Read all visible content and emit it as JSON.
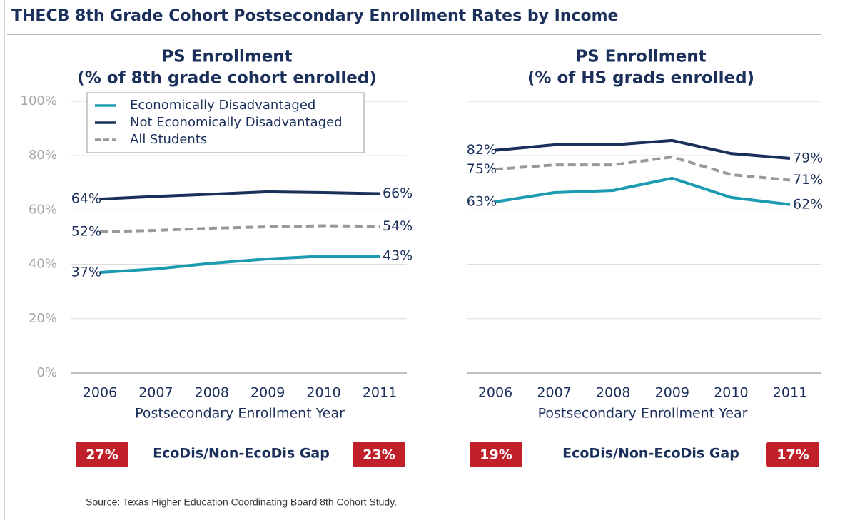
{
  "title": "THECB 8th Grade Cohort Postsecondary Enrollment Rates by Income",
  "source": "Source: Texas Higher Education Coordinating Board 8th Cohort Study.",
  "chart_data": [
    {
      "type": "line",
      "title": "PS Enrollment",
      "subtitle": "(% of 8th grade cohort enrolled)",
      "x_label": "Postsecondary Enrollment Year",
      "categories": [
        "2006",
        "2007",
        "2008",
        "2009",
        "2010",
        "2011"
      ],
      "ylim": [
        0,
        100
      ],
      "yticks": [
        {
          "value": 0,
          "label": "0%"
        },
        {
          "value": 20,
          "label": "20%"
        },
        {
          "value": 40,
          "label": "40%"
        },
        {
          "value": 60,
          "label": "60%"
        },
        {
          "value": 80,
          "label": "80%"
        },
        {
          "value": 100,
          "label": "100%"
        }
      ],
      "ytick_labels": true,
      "grid": true,
      "legend": "top-left",
      "series": [
        {
          "name": "Economically Disadvantaged",
          "color": "#1a9bb0",
          "dash": false,
          "values": [
            37,
            38.3,
            40.4,
            42,
            43,
            43
          ],
          "value_labels": [
            "37%",
            null,
            null,
            null,
            null,
            "43%"
          ]
        },
        {
          "name": "Not Economically Disadvantaged",
          "color": "#1a2f5a",
          "dash": false,
          "values": [
            64,
            65,
            65.8,
            66.7,
            66.4,
            66
          ],
          "value_labels": [
            "64%",
            null,
            null,
            null,
            null,
            "66%"
          ]
        },
        {
          "name": "All Students",
          "color": "#999999",
          "dash": true,
          "values": [
            52,
            52.5,
            53.3,
            53.8,
            54.2,
            54
          ],
          "value_labels": [
            "52%",
            null,
            null,
            null,
            null,
            "54%"
          ]
        }
      ],
      "gap": {
        "label": "EcoDis/Non-EcoDis Gap",
        "values": [
          27,
          23
        ],
        "value_labels": [
          "27%",
          "23%"
        ],
        "color": "#c0202a"
      }
    },
    {
      "type": "line",
      "title": "PS Enrollment",
      "subtitle": "(% of HS grads enrolled)",
      "x_label": "Postsecondary Enrollment Year",
      "categories": [
        "2006",
        "2007",
        "2008",
        "2009",
        "2010",
        "2011"
      ],
      "ylim": [
        0,
        100
      ],
      "yticks": [
        0,
        20,
        40,
        60,
        80,
        100
      ],
      "ytick_labels": false,
      "grid": true,
      "legend": false,
      "series": [
        {
          "name": "Economically Disadvantaged",
          "color": "#1a9bb0",
          "dash": false,
          "values": [
            63,
            66.4,
            67.2,
            71.7,
            64.6,
            62
          ],
          "value_labels": [
            "63%",
            null,
            null,
            null,
            null,
            "62%"
          ]
        },
        {
          "name": "Not Economically Disadvantaged",
          "color": "#1a2f5a",
          "dash": false,
          "values": [
            82,
            84,
            84,
            85.6,
            80.8,
            79
          ],
          "value_labels": [
            "82%",
            null,
            null,
            null,
            null,
            "79%"
          ]
        },
        {
          "name": "All Students",
          "color": "#999999",
          "dash": true,
          "values": [
            75,
            76.6,
            76.6,
            79.5,
            73,
            71
          ],
          "value_labels": [
            "75%",
            null,
            null,
            null,
            null,
            "71%"
          ]
        }
      ],
      "gap": {
        "label": "EcoDis/Non-EcoDis Gap",
        "values": [
          19,
          17
        ],
        "value_labels": [
          "19%",
          "17%"
        ],
        "color": "#c0202a"
      }
    }
  ]
}
